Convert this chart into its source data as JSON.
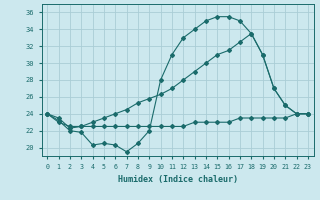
{
  "xlabel": "Humidex (Indice chaleur)",
  "bg_color": "#cce8ee",
  "grid_color": "#aacdd6",
  "line_color": "#1a6b6b",
  "xlim": [
    -0.5,
    23.5
  ],
  "ylim": [
    19.0,
    37.0
  ],
  "yticks": [
    20,
    22,
    24,
    26,
    28,
    30,
    32,
    34,
    36
  ],
  "xticks": [
    0,
    1,
    2,
    3,
    4,
    5,
    6,
    7,
    8,
    9,
    10,
    11,
    12,
    13,
    14,
    15,
    16,
    17,
    18,
    19,
    20,
    21,
    22,
    23
  ],
  "line1_x": [
    0,
    1,
    2,
    3,
    4,
    5,
    6,
    7,
    8,
    9,
    10,
    11,
    12,
    13,
    14,
    15,
    16,
    17,
    18,
    19,
    20,
    21,
    22,
    23
  ],
  "line1_y": [
    24.0,
    23.2,
    22.0,
    21.8,
    20.3,
    20.5,
    20.3,
    19.5,
    20.5,
    22.0,
    28.0,
    31.0,
    33.0,
    34.0,
    35.0,
    35.5,
    35.5,
    35.0,
    33.5,
    31.0,
    27.0,
    25.0,
    24.0,
    24.0
  ],
  "line2_x": [
    0,
    1,
    2,
    3,
    4,
    5,
    6,
    7,
    8,
    9,
    10,
    11,
    12,
    13,
    14,
    15,
    16,
    17,
    18,
    19,
    20,
    21,
    22,
    23
  ],
  "line2_y": [
    24.0,
    23.5,
    22.3,
    22.5,
    23.0,
    23.5,
    24.0,
    24.5,
    25.3,
    25.8,
    26.3,
    27.0,
    28.0,
    29.0,
    30.0,
    31.0,
    31.5,
    32.5,
    33.5,
    31.0,
    27.0,
    25.0,
    24.0,
    24.0
  ],
  "line3_x": [
    0,
    1,
    2,
    3,
    4,
    5,
    6,
    7,
    8,
    9,
    10,
    11,
    12,
    13,
    14,
    15,
    16,
    17,
    18,
    19,
    20,
    21,
    22,
    23
  ],
  "line3_y": [
    24.0,
    23.0,
    22.5,
    22.5,
    22.5,
    22.5,
    22.5,
    22.5,
    22.5,
    22.5,
    22.5,
    22.5,
    22.5,
    23.0,
    23.0,
    23.0,
    23.0,
    23.5,
    23.5,
    23.5,
    23.5,
    23.5,
    24.0,
    24.0
  ]
}
